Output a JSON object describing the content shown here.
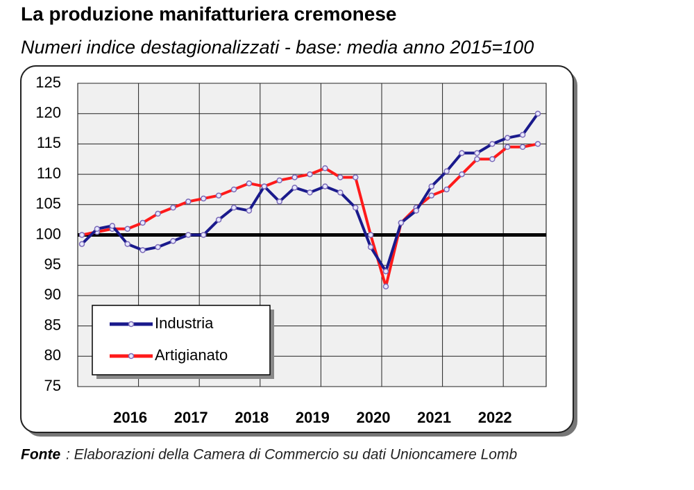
{
  "chart_data": {
    "type": "line",
    "title": "La produzione manifatturiera cremonese",
    "subtitle": "Numeri indice destagionalizzati - base: media anno 2015=100",
    "categories": [
      null,
      null,
      null,
      null,
      "2016",
      null,
      null,
      null,
      "2017",
      null,
      null,
      null,
      "2018",
      null,
      null,
      null,
      "2019",
      null,
      null,
      null,
      "2020",
      null,
      null,
      null,
      "2021",
      null,
      null,
      null,
      "2022",
      null,
      null
    ],
    "series": [
      {
        "name": "Industria",
        "color": "#1a1a8c",
        "values": [
          98.5,
          101,
          101.5,
          98.5,
          97.5,
          98,
          99,
          100,
          100,
          102.5,
          104.5,
          104,
          108,
          105.5,
          107.8,
          107,
          108,
          107,
          104.5,
          98,
          94,
          102,
          104,
          108,
          110.5,
          113.5,
          113.5,
          115,
          116,
          116.5,
          120
        ]
      },
      {
        "name": "Artigianato",
        "color": "#ff1a1a",
        "values": [
          100,
          100.5,
          101,
          101,
          102,
          103.5,
          104.5,
          105.5,
          106,
          106.5,
          107.5,
          108.5,
          108,
          109,
          109.5,
          110,
          111,
          109.5,
          109.5,
          100,
          91.5,
          102,
          104.5,
          106.5,
          107.5,
          110,
          112.5,
          112.5,
          114.5,
          114.5,
          115
        ]
      }
    ],
    "reference_line": 100,
    "ylim": [
      75,
      125
    ],
    "yticks": [
      75,
      80,
      85,
      90,
      95,
      100,
      105,
      110,
      115,
      120,
      125
    ],
    "grid": true,
    "source_label": "Fonte",
    "source": ": Elaborazioni della Camera di Commercio su dati Unioncamere Lomb"
  }
}
